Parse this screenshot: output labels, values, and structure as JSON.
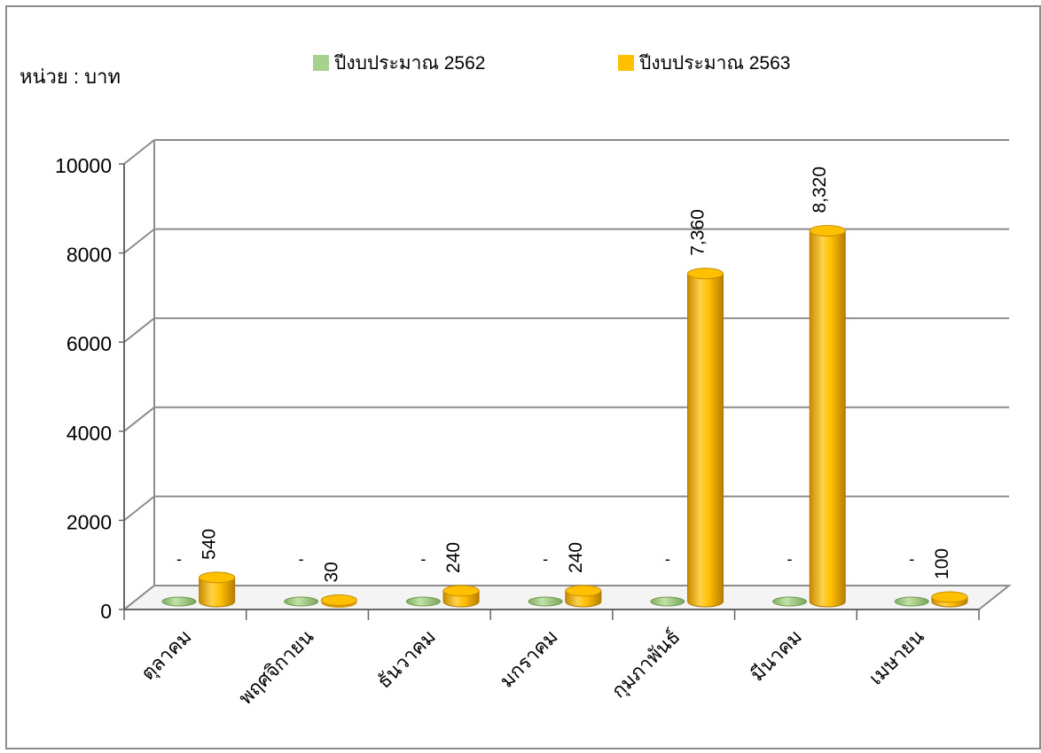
{
  "chart_data": {
    "type": "bar",
    "unit_label": "หน่วย : บาท",
    "categories": [
      "ตุลาคม",
      "พฤศจิกายน",
      "ธันวาคม",
      "มกราคม",
      "กุมภาพันธ์",
      "มีนาคม",
      "เมษายน"
    ],
    "series": [
      {
        "name": "ปีงบประมาณ 2562",
        "values": [
          0,
          0,
          0,
          0,
          0,
          0,
          0
        ],
        "labels": [
          "-",
          "-",
          "-",
          "-",
          "-",
          "-",
          "-"
        ],
        "color": "#a9d18e"
      },
      {
        "name": "ปีงบประมาณ 2563",
        "values": [
          540,
          30,
          240,
          240,
          7360,
          8320,
          100
        ],
        "labels": [
          "540",
          "30",
          "240",
          "240",
          "7,360",
          "8,320",
          "100"
        ],
        "color": "#ffc000"
      }
    ],
    "yticks": [
      "0",
      "2000",
      "4000",
      "6000",
      "8000",
      "10000"
    ],
    "ylim": [
      0,
      10000
    ],
    "grid": true,
    "legend": "top",
    "style": "3d-cylinder"
  }
}
